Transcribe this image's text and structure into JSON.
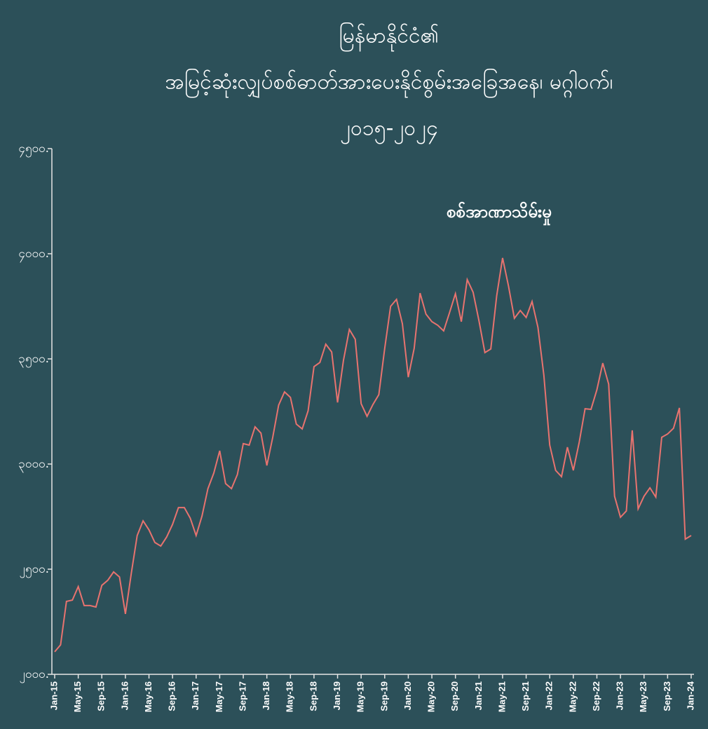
{
  "chart_data": {
    "type": "line",
    "title": [
      "မြန်မာနိုင်ငံ၏",
      "အမြင့်ဆုံးလျှပ်စစ်ဓာတ်အားပေးနိုင်စွမ်းအခြေအနေ၊ မဂ္ဂါဝက်၊",
      "၂၀၁၅-၂၀၂၄"
    ],
    "annotation": "စစ်အာဏာသိမ်းမှု",
    "categories": [
      "Jan-15",
      null,
      null,
      null,
      "May-15",
      null,
      null,
      null,
      "Sep-15",
      null,
      null,
      null,
      "Jan-16",
      null,
      null,
      null,
      "May-16",
      null,
      null,
      null,
      "Sep-16",
      null,
      null,
      null,
      "Jan-17",
      null,
      null,
      null,
      "May-17",
      null,
      null,
      null,
      "Sep-17",
      null,
      null,
      null,
      "Jan-18",
      null,
      null,
      null,
      "May-18",
      null,
      null,
      null,
      "Sep-18",
      null,
      null,
      null,
      "Jan-19",
      null,
      null,
      null,
      "May-19",
      null,
      null,
      null,
      "Sep-19",
      null,
      null,
      null,
      "Jan-20",
      null,
      null,
      null,
      "May-20",
      null,
      null,
      null,
      "Sep-20",
      null,
      null,
      null,
      "Jan-21",
      null,
      null,
      null,
      "May-21",
      null,
      null,
      null,
      "Sep-21",
      null,
      null,
      null,
      "Jan-22",
      null,
      null,
      null,
      "May-22",
      null,
      null,
      null,
      "Sep-22",
      null,
      null,
      null,
      "Jan-23",
      null,
      null,
      null,
      "May-23",
      null,
      null,
      null,
      "Sep-23",
      null,
      null,
      null,
      "Jan-24"
    ],
    "series": [
      {
        "color": "#e8736f",
        "values": [
          2107,
          2140,
          2347,
          2353,
          2417,
          2327,
          2327,
          2320,
          2423,
          2447,
          2487,
          2463,
          2287,
          2480,
          2660,
          2730,
          2687,
          2627,
          2610,
          2653,
          2713,
          2793,
          2793,
          2743,
          2660,
          2753,
          2883,
          2957,
          3063,
          2907,
          2883,
          2950,
          3097,
          3090,
          3177,
          3147,
          2993,
          3127,
          3280,
          3343,
          3317,
          3190,
          3167,
          3253,
          3463,
          3483,
          3570,
          3533,
          3293,
          3493,
          3640,
          3593,
          3287,
          3227,
          3283,
          3330,
          3550,
          3750,
          3783,
          3667,
          3413,
          3550,
          3813,
          3713,
          3677,
          3660,
          3633,
          3720,
          3810,
          3677,
          3877,
          3817,
          3680,
          3530,
          3547,
          3800,
          3980,
          3847,
          3693,
          3730,
          3697,
          3773,
          3650,
          3423,
          3090,
          2970,
          2940,
          3080,
          2970,
          3103,
          3263,
          3260,
          3353,
          3480,
          3380,
          2847,
          2747,
          2777,
          3160,
          2787,
          2847,
          2887,
          2843,
          3127,
          3143,
          3170,
          3267,
          2643,
          2660
        ]
      }
    ],
    "ylim": [
      2000,
      4500
    ],
    "yticks": [
      {
        "value": 2000,
        "label": "၂၀၀၀."
      },
      {
        "value": 2500,
        "label": "၂၅၀၀."
      },
      {
        "value": 3000,
        "label": "၃၀၀၀."
      },
      {
        "value": 3500,
        "label": "၃၅၀၀."
      },
      {
        "value": 4000,
        "label": "၄၀၀၀."
      },
      {
        "value": 4500,
        "label": "၄၅၀၀."
      }
    ],
    "grid": false
  }
}
